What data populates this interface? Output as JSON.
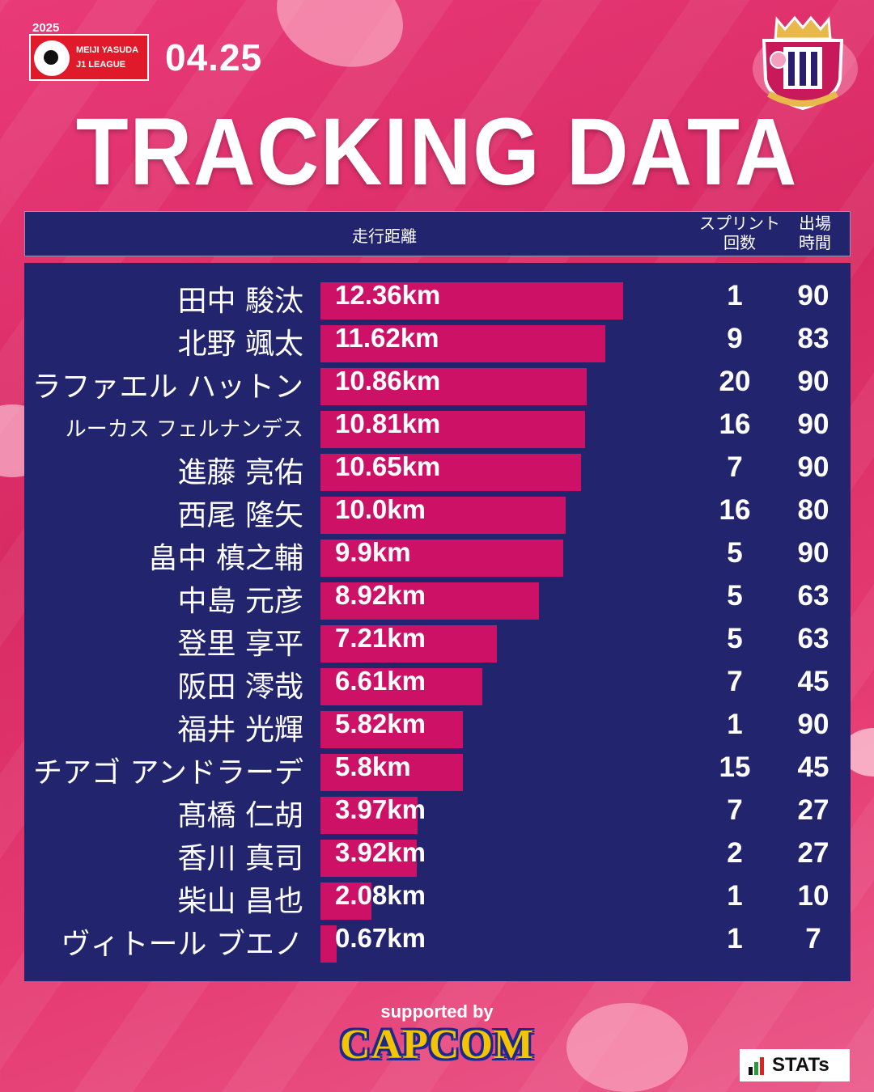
{
  "header": {
    "season": "2025",
    "league_line1": "MEIJI YASUDA",
    "league_line2": "J1 LEAGUE",
    "date": "04.25",
    "title": "TRACKING DATA"
  },
  "columns": {
    "distance": "走行距離",
    "sprint_line1": "スプリント",
    "sprint_line2": "回数",
    "time_line1": "出場",
    "time_line2": "時間"
  },
  "chart_data": {
    "type": "bar",
    "orientation": "horizontal",
    "unit": "km",
    "xlim": [
      0,
      12.36
    ],
    "categories": [
      "田中 駿汰",
      "北野 颯太",
      "ラファエル ハットン",
      "ルーカス フェルナンデス",
      "進藤 亮佑",
      "西尾 隆矢",
      "畠中 槙之輔",
      "中島 元彦",
      "登里 享平",
      "阪田 澪哉",
      "福井 光輝",
      "チアゴ アンドラーデ",
      "髙橋 仁胡",
      "香川 真司",
      "柴山 昌也",
      "ヴィトール ブエノ"
    ],
    "values": [
      12.36,
      11.62,
      10.86,
      10.81,
      10.65,
      10.0,
      9.9,
      8.92,
      7.21,
      6.61,
      5.82,
      5.8,
      3.97,
      3.92,
      2.08,
      0.67
    ],
    "labels": [
      "12.36km",
      "11.62km",
      "10.86km",
      "10.81km",
      "10.65km",
      "10.0km",
      "9.9km",
      "8.92km",
      "7.21km",
      "6.61km",
      "5.82km",
      "5.8km",
      "3.97km",
      "3.92km",
      "2.08km",
      "0.67km"
    ],
    "sprints": [
      "1",
      "9",
      "20",
      "16",
      "7",
      "16",
      "5",
      "5",
      "5",
      "7",
      "1",
      "15",
      "7",
      "2",
      "1",
      "1"
    ],
    "minutes": [
      "90",
      "83",
      "90",
      "90",
      "90",
      "80",
      "90",
      "63",
      "63",
      "45",
      "90",
      "45",
      "27",
      "27",
      "10",
      "7"
    ],
    "bar_color": "#cc1166"
  },
  "footer": {
    "supported_by": "supported by",
    "sponsor": "CAPCOM",
    "data_provider": "STATs"
  },
  "colors": {
    "panel": "#22246e",
    "accent": "#cc1166",
    "background": "#e0336f"
  }
}
